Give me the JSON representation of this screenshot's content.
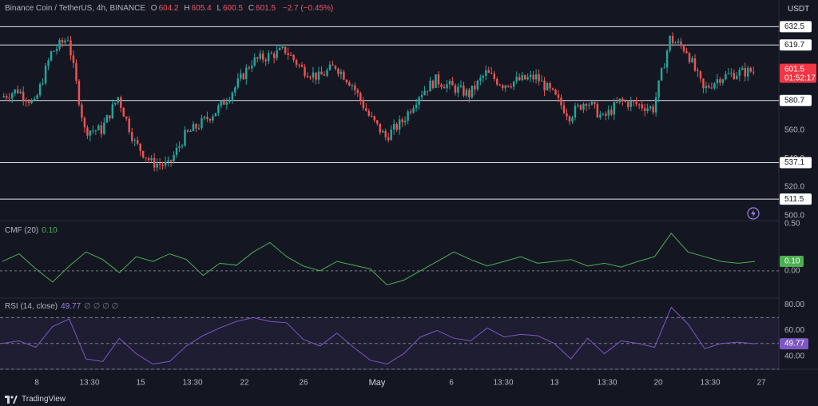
{
  "header": {
    "symbol": "Binance Coin / TetherUS, 4h, BINANCE",
    "open_label": "O",
    "open": "604.2",
    "high_label": "H",
    "high": "605.4",
    "low_label": "L",
    "low": "600.5",
    "close_label": "C",
    "close": "601.5",
    "change": "−2.7 (−0.45%)",
    "currency": "USDT"
  },
  "price_badge": {
    "price": "601.5",
    "countdown": "01:52:17"
  },
  "cmf": {
    "title": "CMF (20)",
    "value": "0.10"
  },
  "rsi": {
    "title": "RSI (14, close)",
    "value": "49.77",
    "extra": "∅ ∅ ∅ ∅"
  },
  "footer": {
    "brand": "TradingView"
  },
  "colors": {
    "up": "#26a69a",
    "down": "#ef5350",
    "cmf": "#4caf50",
    "rsi": "#7e57c2",
    "badge_price": "#f23645",
    "badge_cmf": "#4caf50",
    "badge_rsi": "#7e57c2"
  },
  "chart_data": [
    {
      "type": "candlestick",
      "title": "Binance Coin / TetherUS, 4h, BINANCE",
      "ylim": [
        497,
        640
      ],
      "y_ticks": [
        "500.0",
        "520.0",
        "540.0",
        "560.0"
      ],
      "x_ticks": [
        "8",
        "13:30",
        "15",
        "13:30",
        "22",
        "26",
        "May",
        "6",
        "13:30",
        "13",
        "13:30",
        "20",
        "13:30",
        "27"
      ],
      "levels": [
        "632.5",
        "619.7",
        "580.7",
        "537.1",
        "511.5"
      ],
      "level_values": [
        632.5,
        619.7,
        580.7,
        537.1,
        511.5
      ],
      "last_price": 601.5,
      "series": [
        {
          "date": "Apr 8",
          "close": 583
        },
        {
          "date": "Apr 9",
          "close": 588
        },
        {
          "date": "Apr 10",
          "close": 578
        },
        {
          "date": "Apr 11",
          "close": 614
        },
        {
          "date": "Apr 12",
          "close": 625
        },
        {
          "date": "Apr 13",
          "close": 560
        },
        {
          "date": "Apr 14",
          "close": 560
        },
        {
          "date": "Apr 15",
          "close": 583
        },
        {
          "date": "Apr 16",
          "close": 551
        },
        {
          "date": "Apr 17",
          "close": 537
        },
        {
          "date": "Apr 18",
          "close": 535
        },
        {
          "date": "Apr 19",
          "close": 556
        },
        {
          "date": "Apr 20",
          "close": 565
        },
        {
          "date": "Apr 21",
          "close": 575
        },
        {
          "date": "Apr 22",
          "close": 590
        },
        {
          "date": "Apr 23",
          "close": 608
        },
        {
          "date": "Apr 24",
          "close": 612
        },
        {
          "date": "Apr 25",
          "close": 616
        },
        {
          "date": "Apr 26",
          "close": 603
        },
        {
          "date": "Apr 27",
          "close": 597
        },
        {
          "date": "Apr 28",
          "close": 605
        },
        {
          "date": "Apr 29",
          "close": 592
        },
        {
          "date": "Apr 30",
          "close": 570
        },
        {
          "date": "May 1",
          "close": 555
        },
        {
          "date": "May 2",
          "close": 566
        },
        {
          "date": "May 3",
          "close": 585
        },
        {
          "date": "May 4",
          "close": 595
        },
        {
          "date": "May 5",
          "close": 590
        },
        {
          "date": "May 6",
          "close": 585
        },
        {
          "date": "May 7",
          "close": 600
        },
        {
          "date": "May 8",
          "close": 592
        },
        {
          "date": "May 9",
          "close": 595
        },
        {
          "date": "May 10",
          "close": 597
        },
        {
          "date": "May 11",
          "close": 585
        },
        {
          "date": "May 12",
          "close": 570
        },
        {
          "date": "May 13",
          "close": 581
        },
        {
          "date": "May 14",
          "close": 568
        },
        {
          "date": "May 15",
          "close": 580
        },
        {
          "date": "May 16",
          "close": 578
        },
        {
          "date": "May 17",
          "close": 575
        },
        {
          "date": "May 18",
          "close": 624
        },
        {
          "date": "May 19",
          "close": 616
        },
        {
          "date": "May 20",
          "close": 588
        },
        {
          "date": "May 21",
          "close": 597
        },
        {
          "date": "May 22",
          "close": 600
        },
        {
          "date": "May 23",
          "close": 601.5
        }
      ]
    },
    {
      "type": "line",
      "title": "CMF (20)",
      "ylim": [
        -0.18,
        0.5
      ],
      "y_ticks": [
        "0.50",
        "0.00"
      ],
      "series": [
        {
          "name": "CMF (20)",
          "values": [
            0.1,
            0.18,
            0.02,
            -0.12,
            0.05,
            0.2,
            0.12,
            -0.02,
            0.15,
            0.1,
            0.18,
            0.12,
            -0.05,
            0.08,
            0.06,
            0.2,
            0.3,
            0.15,
            0.05,
            0.0,
            0.1,
            0.06,
            0.02,
            -0.15,
            -0.1,
            0.0,
            0.1,
            0.2,
            0.12,
            0.05,
            0.1,
            0.15,
            0.08,
            0.1,
            0.12,
            0.05,
            0.08,
            0.04,
            0.1,
            0.15,
            0.4,
            0.2,
            0.15,
            0.1,
            0.08,
            0.1
          ]
        }
      ]
    },
    {
      "type": "line",
      "title": "RSI (14, close)",
      "ylim": [
        30,
        82
      ],
      "y_ticks": [
        "80.00",
        "60.00",
        "40.00"
      ],
      "bands": [
        70,
        50,
        30
      ],
      "series": [
        {
          "name": "RSI (14, close)",
          "values": [
            50,
            52,
            47,
            63,
            69,
            38,
            36,
            54,
            42,
            34,
            36,
            48,
            56,
            62,
            67,
            70,
            67,
            66,
            53,
            48,
            58,
            47,
            37,
            34,
            42,
            55,
            60,
            54,
            52,
            62,
            55,
            57,
            56,
            50,
            38,
            54,
            42,
            52,
            50,
            47,
            78,
            65,
            46,
            50,
            51,
            49.77
          ]
        }
      ]
    }
  ]
}
